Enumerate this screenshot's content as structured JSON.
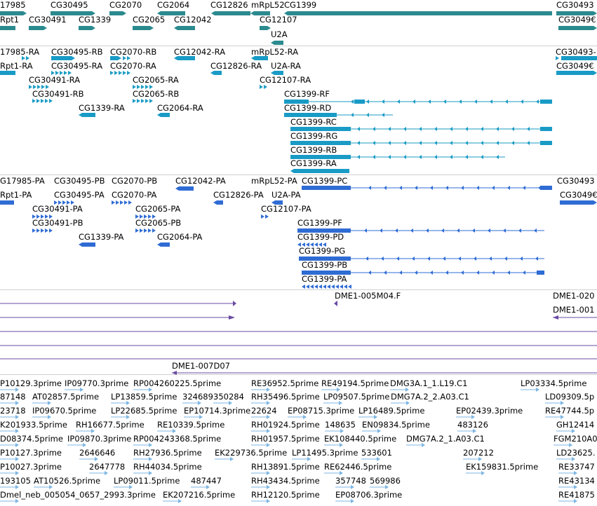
{
  "colors": {
    "gene": "#2b8a8e",
    "transcript": "#199bc6",
    "protein": "#2f6cd4",
    "clone": "#6a4ba3",
    "est": "#7cb6e4",
    "separator": "#d0d0d0"
  },
  "tracks": {
    "genes": {
      "labels": [
        "17985",
        "CG30495",
        "CG2070",
        "CG2064",
        "CG12826",
        "mRpL52",
        "CG1399",
        "CG30493",
        "Rpt1",
        "CG30491",
        "CG1339",
        "CG2065",
        "CG12042",
        "CG12107",
        "CG3049€",
        "U2A"
      ]
    },
    "transcripts": {
      "labels": [
        "17985-RA",
        "CG30495-RB",
        "CG2070-RB",
        "CG12042-RA",
        "mRpL52-RA",
        "CG30493-",
        "Rpt1-RA",
        "CG30495-RA",
        "CG2070-RA",
        "CG12826-RA",
        "U2A-RA",
        "CG3049€",
        "CG30491-RA",
        "CG2065-RA",
        "CG12107-RA",
        "CG30491-RB",
        "CG2065-RB",
        "CG1399-RF",
        "CG1339-RA",
        "CG2064-RA",
        "CG1399-RD",
        "CG1399-RC",
        "CG1399-RG",
        "CG1399-RB",
        "CG1399-RA"
      ]
    },
    "proteins": {
      "labels": [
        "G17985-PA",
        "CG30495-PB",
        "CG2070-PB",
        "CG12042-PA",
        "mRpL52-PA",
        "CG1399-PC",
        "CG30493",
        "Rpt1-PA",
        "CG30495-PA",
        "CG2070-PA",
        "CG12826-PA",
        "U2A-PA",
        "CG3049€",
        "CG30491-PA",
        "CG2065-PA",
        "CG12107-PA",
        "CG30491-PB",
        "CG2065-PB",
        "CG1399-PF",
        "CG1339-PA",
        "CG2064-PA",
        "CG1399-PD",
        "CG1399-PG",
        "CG1399-PB",
        "CG1399-PA"
      ]
    },
    "clones": {
      "labels": [
        "DME1-005M04.F",
        "DME1-020",
        "DME1-001",
        "DME1-007D07"
      ]
    },
    "ests": {
      "labels": [
        "P10129.3prime",
        "IP09770.3prime",
        "RP004260225.5prime",
        "RE36952.5prime",
        "RE49194.5prime",
        "DMG3A.1_1.L19.C1",
        "LP03334.5prime",
        "87148",
        "AT02857.5prime",
        "LP13859.5prime",
        "324689",
        "350284",
        "RH35496.5prime",
        "LP09507.5prime",
        "DMG7A.2_2.A03.C1",
        "LD09309.5p",
        "23718",
        "IP09670.5prime",
        "LP22685.5prime",
        "EP10714.3prime",
        "22624",
        "EP08715.3prime",
        "LP16489.5prime",
        "EP02439.3prime",
        "RE47744.5p",
        "K201933.5prime",
        "RH16677.5prime",
        "RE10339.5prime",
        "RH01924.5prime",
        "148635",
        "EN09834.5prime",
        "483126",
        "GH12414",
        "D08374.5prime",
        "IP09870.3prime",
        "RP004243368.5prime",
        "RH01957.5prime",
        "EK108440.5prime",
        "DMG7A.2_1.A03.C1",
        "FGM210A0",
        "P10127.3prime",
        "2646646",
        "RH27936.5prime",
        "EK229736.5prime",
        "LP11495.3prime",
        "533601",
        "207212",
        "LD23625.",
        "P10027.3prime",
        "2647778",
        "RH44034.5prime",
        "RH13891.5prime",
        "RE62446.5prime",
        "EK159831.5prime",
        "RE33747",
        "193105",
        "AT10526.5prime",
        "LP09011.5prime",
        "487447",
        "RH43434.5prime",
        "357748",
        "569986",
        "RE43134",
        "Dmel_neb_005054_0657_2993.3prime",
        "EK207216.5prime",
        "RH12120.5prime",
        "EP08706.3prime",
        "RE41875"
      ]
    }
  }
}
